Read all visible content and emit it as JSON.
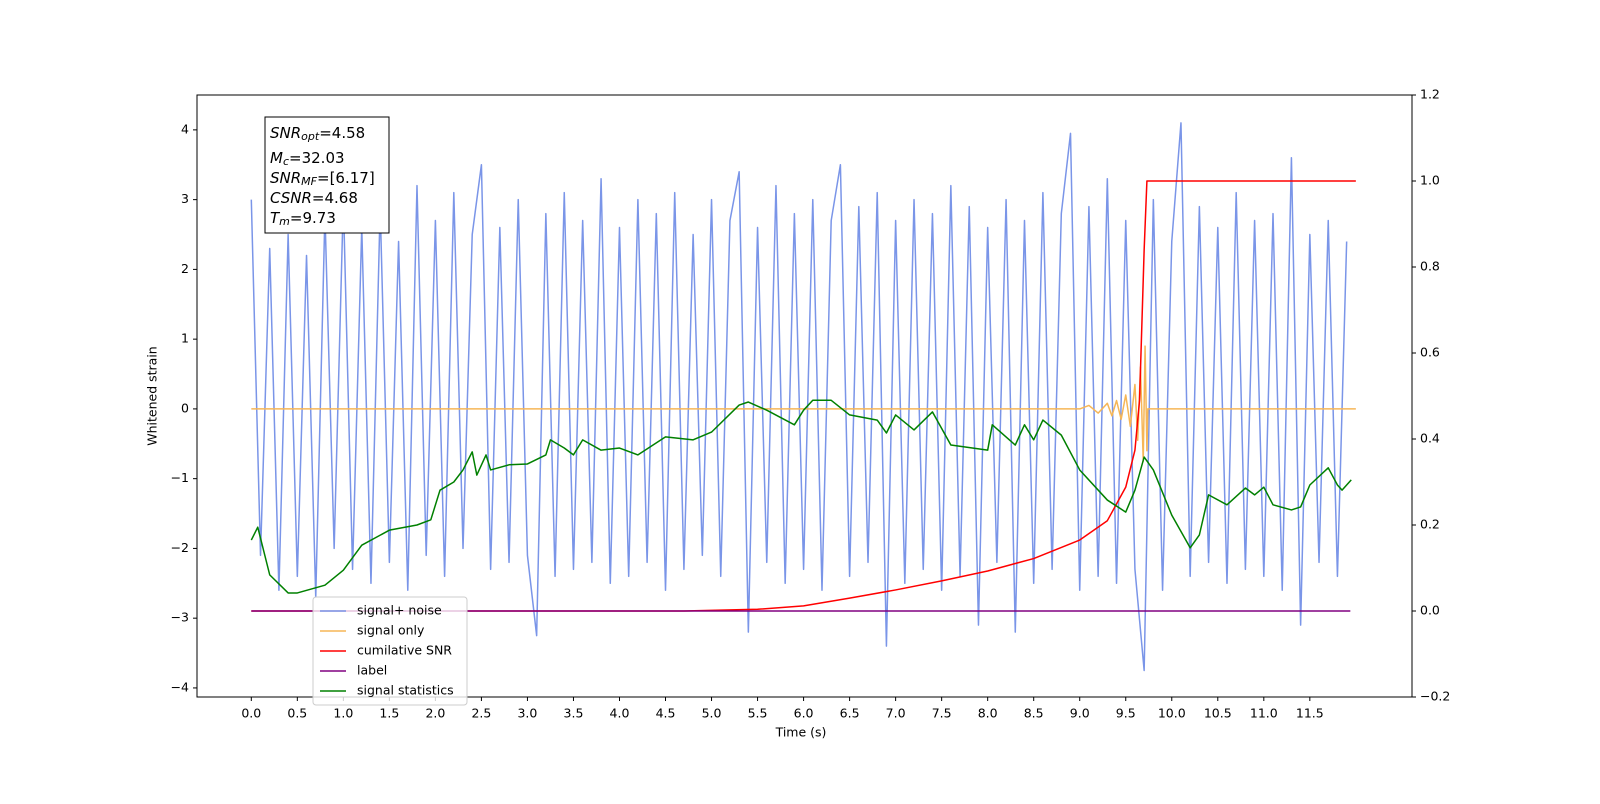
{
  "chart_data": {
    "type": "line",
    "xlabel": "Time (s)",
    "ylabel": "Whitened strain",
    "xlim": [
      -0.59,
      12.61
    ],
    "ylim": [
      -4.13,
      4.5
    ],
    "y2lim": [
      -0.2,
      1.2
    ],
    "xticks": [
      {
        "value": 0,
        "label": "0.0"
      },
      0.5,
      {
        "value": 1,
        "label": "1.0"
      },
      1.5,
      {
        "value": 2,
        "label": "2.0"
      },
      2.5,
      {
        "value": 3,
        "label": "3.0"
      },
      3.5,
      {
        "value": 4,
        "label": "4.0"
      },
      4.5,
      {
        "value": 5,
        "label": "5.0"
      },
      5.5,
      {
        "value": 6,
        "label": "6.0"
      },
      6.5,
      {
        "value": 7,
        "label": "7.0"
      },
      7.5,
      {
        "value": 8,
        "label": "8.0"
      },
      8.5,
      {
        "value": 9,
        "label": "9.0"
      },
      9.5,
      {
        "value": 10,
        "label": "10.0"
      },
      10.5,
      {
        "value": 11,
        "label": "11.0"
      },
      11.5
    ],
    "yticks": [
      {
        "value": -4,
        "label": "−4"
      },
      {
        "value": -3,
        "label": "−3"
      },
      {
        "value": -2,
        "label": "−2"
      },
      {
        "value": -1,
        "label": "−1"
      },
      0,
      1,
      2,
      3,
      4
    ],
    "y2ticks": [
      {
        "value": -0.2,
        "label": "−0.2"
      },
      {
        "value": 0,
        "label": "0.0"
      },
      0.2,
      0.4,
      0.6,
      0.8,
      {
        "value": 1,
        "label": "1.0"
      },
      1.2
    ],
    "legend": "lower left",
    "annotation": [
      {
        "base": "SNR",
        "sub": "opt",
        "text": "=4.58"
      },
      {
        "base": "M",
        "sub": "c",
        "text": "=32.03"
      },
      {
        "base": "SNR",
        "sub": "MF",
        "text": "=[6.17]"
      },
      {
        "base": "CSNR",
        "text": "=4.68"
      },
      {
        "base": "T",
        "sub": "m",
        "text": "=9.73"
      }
    ],
    "series": [
      {
        "name": "signal+ noise",
        "color": "#7a95e8",
        "x": [
          0,
          0.1,
          0.2,
          0.3,
          0.4,
          0.5,
          0.6,
          0.7,
          0.8,
          0.9,
          1,
          1.1,
          1.2,
          1.3,
          1.4,
          1.5,
          1.6,
          1.7,
          1.8,
          1.9,
          2,
          2.1,
          2.2,
          2.3,
          2.4,
          2.5,
          2.6,
          2.7,
          2.8,
          2.9,
          3,
          3.1,
          3.2,
          3.3,
          3.4,
          3.5,
          3.6,
          3.7,
          3.8,
          3.9,
          4,
          4.1,
          4.2,
          4.3,
          4.4,
          4.5,
          4.6,
          4.7,
          4.8,
          4.9,
          5,
          5.1,
          5.2,
          5.3,
          5.4,
          5.5,
          5.6,
          5.7,
          5.8,
          5.9,
          6,
          6.1,
          6.2,
          6.3,
          6.4,
          6.5,
          6.6,
          6.7,
          6.8,
          6.9,
          7,
          7.1,
          7.2,
          7.3,
          7.4,
          7.5,
          7.6,
          7.7,
          7.8,
          7.9,
          8,
          8.1,
          8.2,
          8.3,
          8.4,
          8.5,
          8.6,
          8.7,
          8.8,
          8.9,
          9,
          9.1,
          9.2,
          9.3,
          9.4,
          9.5,
          9.6,
          9.7,
          9.8,
          9.9,
          10,
          10.1,
          10.2,
          10.3,
          10.4,
          10.5,
          10.6,
          10.7,
          10.8,
          10.9,
          11,
          11.1,
          11.2,
          11.3,
          11.4,
          11.5,
          11.6,
          11.7,
          11.8,
          11.9
        ],
        "values": [
          3.0,
          -2.1,
          2.3,
          -2.6,
          2.5,
          -2.4,
          2.2,
          -2.7,
          2.8,
          -2.0,
          3.0,
          -2.3,
          2.6,
          -2.5,
          2.9,
          -2.2,
          2.4,
          -2.6,
          3.2,
          -2.1,
          2.7,
          -2.4,
          3.1,
          -2.0,
          2.5,
          3.5,
          -2.3,
          2.6,
          -2.2,
          3.0,
          -2.1,
          -3.25,
          2.8,
          -2.4,
          3.1,
          -2.3,
          2.7,
          -2.2,
          3.3,
          -2.5,
          2.6,
          -2.4,
          3.0,
          -2.2,
          2.8,
          -2.6,
          3.1,
          -2.3,
          2.5,
          -2.1,
          3.0,
          -2.4,
          2.7,
          3.4,
          -3.2,
          2.6,
          -2.2,
          3.2,
          -2.5,
          2.8,
          -2.3,
          3.0,
          -2.6,
          2.7,
          3.5,
          -2.4,
          2.9,
          -2.2,
          3.1,
          -3.4,
          2.7,
          -2.5,
          3.0,
          -2.3,
          2.8,
          -2.6,
          3.2,
          -2.4,
          2.9,
          -3.1,
          2.6,
          -2.2,
          3.0,
          -3.2,
          2.7,
          -2.5,
          3.1,
          -2.3,
          2.8,
          3.95,
          -2.6,
          2.9,
          -2.4,
          3.3,
          -2.5,
          2.7,
          -2.3,
          -3.75,
          3.0,
          -2.6,
          2.4,
          4.1,
          -2.4,
          2.9,
          -2.2,
          2.6,
          -2.5,
          3.1,
          -2.3,
          2.7,
          -2.4,
          2.8,
          -2.6,
          3.6,
          -3.1,
          2.5,
          -2.2,
          2.7,
          -2.4,
          2.4
        ]
      },
      {
        "name": "signal only",
        "color": "#f6b657",
        "x": [
          0,
          9.0,
          9.1,
          9.2,
          9.3,
          9.35,
          9.4,
          9.45,
          9.5,
          9.55,
          9.6,
          9.63,
          9.66,
          9.69,
          9.71,
          9.73,
          9.74,
          12.0
        ],
        "values": [
          0,
          0,
          0.05,
          -0.06,
          0.08,
          -0.1,
          0.12,
          -0.15,
          0.2,
          -0.25,
          0.35,
          -0.45,
          0.6,
          -0.75,
          0.9,
          -0.6,
          0,
          0
        ]
      },
      {
        "name": "cumilative SNR",
        "color": "#ff0000",
        "axis": "y2",
        "x": [
          0,
          4.7,
          5.5,
          6.0,
          6.5,
          7.0,
          7.5,
          8.0,
          8.5,
          9.0,
          9.3,
          9.5,
          9.6,
          9.65,
          9.7,
          9.73,
          12.0
        ],
        "values": [
          0,
          0,
          0.004,
          0.012,
          0.03,
          0.049,
          0.07,
          0.093,
          0.122,
          0.165,
          0.21,
          0.288,
          0.374,
          0.49,
          0.84,
          1.0,
          1.0
        ]
      },
      {
        "name": "label",
        "color": "#800080",
        "axis": "y2",
        "x": [
          0,
          11.94
        ],
        "values": [
          0,
          0
        ]
      },
      {
        "name": "signal statistics",
        "color": "#008000",
        "axis": "y2",
        "x": [
          0,
          0.07,
          0.2,
          0.4,
          0.5,
          0.8,
          1.0,
          1.2,
          1.5,
          1.8,
          1.95,
          2.05,
          2.2,
          2.3,
          2.4,
          2.45,
          2.55,
          2.6,
          2.8,
          3.0,
          3.2,
          3.25,
          3.4,
          3.5,
          3.6,
          3.8,
          4.0,
          4.2,
          4.5,
          4.8,
          5.0,
          5.3,
          5.4,
          5.6,
          5.9,
          6.0,
          6.1,
          6.3,
          6.5,
          6.8,
          6.9,
          7.0,
          7.2,
          7.4,
          7.6,
          8.0,
          8.05,
          8.3,
          8.4,
          8.5,
          8.6,
          8.8,
          9.0,
          9.3,
          9.5,
          9.6,
          9.7,
          9.8,
          10.0,
          10.2,
          10.3,
          10.4,
          10.6,
          10.8,
          10.9,
          11.0,
          11.1,
          11.3,
          11.4,
          11.5,
          11.7,
          11.8,
          11.85,
          11.95
        ],
        "values": [
          0.165,
          0.195,
          0.084,
          0.042,
          0.042,
          0.06,
          0.095,
          0.153,
          0.188,
          0.2,
          0.212,
          0.281,
          0.3,
          0.328,
          0.37,
          0.316,
          0.363,
          0.328,
          0.34,
          0.342,
          0.363,
          0.398,
          0.379,
          0.363,
          0.398,
          0.374,
          0.379,
          0.363,
          0.405,
          0.398,
          0.416,
          0.479,
          0.486,
          0.467,
          0.433,
          0.467,
          0.49,
          0.49,
          0.456,
          0.444,
          0.414,
          0.456,
          0.421,
          0.463,
          0.386,
          0.374,
          0.433,
          0.386,
          0.433,
          0.398,
          0.444,
          0.409,
          0.328,
          0.258,
          0.23,
          0.281,
          0.358,
          0.328,
          0.223,
          0.147,
          0.177,
          0.27,
          0.247,
          0.286,
          0.27,
          0.288,
          0.247,
          0.235,
          0.242,
          0.293,
          0.333,
          0.293,
          0.281,
          0.305
        ]
      }
    ]
  }
}
